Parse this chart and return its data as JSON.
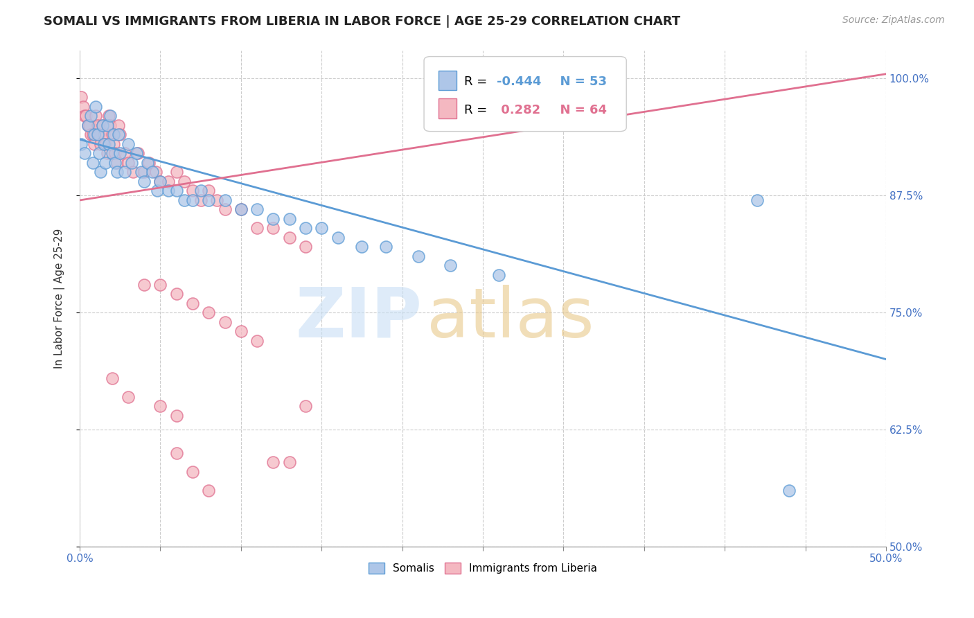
{
  "title": "SOMALI VS IMMIGRANTS FROM LIBERIA IN LABOR FORCE | AGE 25-29 CORRELATION CHART",
  "source": "Source: ZipAtlas.com",
  "ylabel": "In Labor Force | Age 25-29",
  "xlim": [
    0.0,
    0.5
  ],
  "ylim": [
    0.5,
    1.03
  ],
  "xticks": [
    0.0,
    0.05,
    0.1,
    0.15,
    0.2,
    0.25,
    0.3,
    0.35,
    0.4,
    0.45,
    0.5
  ],
  "xticklabels": [
    "0.0%",
    "",
    "",
    "",
    "",
    "",
    "",
    "",
    "",
    "",
    "50.0%"
  ],
  "yticks": [
    0.5,
    0.625,
    0.75,
    0.875,
    1.0
  ],
  "yticklabels": [
    "50.0%",
    "62.5%",
    "75.0%",
    "87.5%",
    "100.0%"
  ],
  "grid_color": "#cccccc",
  "background_color": "#ffffff",
  "somali_color": "#aec6e8",
  "somali_edge_color": "#5b9bd5",
  "liberia_color": "#f4b8c1",
  "liberia_edge_color": "#e07090",
  "somali_R": -0.444,
  "somali_N": 53,
  "liberia_R": 0.282,
  "liberia_N": 64,
  "somali_line_color": "#5b9bd5",
  "liberia_line_color": "#e07090",
  "somali_x": [
    0.001,
    0.003,
    0.005,
    0.007,
    0.008,
    0.009,
    0.01,
    0.011,
    0.012,
    0.013,
    0.014,
    0.015,
    0.016,
    0.017,
    0.018,
    0.019,
    0.02,
    0.021,
    0.022,
    0.023,
    0.024,
    0.025,
    0.028,
    0.03,
    0.032,
    0.035,
    0.038,
    0.04,
    0.042,
    0.045,
    0.048,
    0.05,
    0.055,
    0.06,
    0.065,
    0.07,
    0.075,
    0.08,
    0.09,
    0.1,
    0.11,
    0.12,
    0.13,
    0.14,
    0.15,
    0.16,
    0.175,
    0.19,
    0.21,
    0.23,
    0.26,
    0.42,
    0.44
  ],
  "somali_y": [
    0.93,
    0.92,
    0.95,
    0.96,
    0.91,
    0.94,
    0.97,
    0.94,
    0.92,
    0.9,
    0.95,
    0.93,
    0.91,
    0.95,
    0.93,
    0.96,
    0.92,
    0.94,
    0.91,
    0.9,
    0.94,
    0.92,
    0.9,
    0.93,
    0.91,
    0.92,
    0.9,
    0.89,
    0.91,
    0.9,
    0.88,
    0.89,
    0.88,
    0.88,
    0.87,
    0.87,
    0.88,
    0.87,
    0.87,
    0.86,
    0.86,
    0.85,
    0.85,
    0.84,
    0.84,
    0.83,
    0.82,
    0.82,
    0.81,
    0.8,
    0.79,
    0.87,
    0.56
  ],
  "liberia_x": [
    0.001,
    0.002,
    0.003,
    0.004,
    0.005,
    0.006,
    0.007,
    0.008,
    0.009,
    0.01,
    0.011,
    0.012,
    0.013,
    0.014,
    0.015,
    0.016,
    0.017,
    0.018,
    0.019,
    0.02,
    0.021,
    0.022,
    0.023,
    0.024,
    0.025,
    0.028,
    0.03,
    0.033,
    0.036,
    0.04,
    0.043,
    0.047,
    0.05,
    0.055,
    0.06,
    0.065,
    0.07,
    0.075,
    0.08,
    0.085,
    0.09,
    0.1,
    0.11,
    0.12,
    0.13,
    0.14,
    0.04,
    0.05,
    0.06,
    0.07,
    0.08,
    0.09,
    0.1,
    0.11,
    0.12,
    0.13,
    0.14,
    0.02,
    0.03,
    0.05,
    0.06,
    0.06,
    0.07,
    0.08
  ],
  "liberia_y": [
    0.98,
    0.97,
    0.96,
    0.96,
    0.95,
    0.95,
    0.94,
    0.94,
    0.93,
    0.96,
    0.95,
    0.94,
    0.93,
    0.95,
    0.94,
    0.93,
    0.92,
    0.96,
    0.95,
    0.94,
    0.93,
    0.92,
    0.91,
    0.95,
    0.94,
    0.92,
    0.91,
    0.9,
    0.92,
    0.9,
    0.91,
    0.9,
    0.89,
    0.89,
    0.9,
    0.89,
    0.88,
    0.87,
    0.88,
    0.87,
    0.86,
    0.86,
    0.84,
    0.84,
    0.83,
    0.82,
    0.78,
    0.78,
    0.77,
    0.76,
    0.75,
    0.74,
    0.73,
    0.72,
    0.59,
    0.59,
    0.65,
    0.68,
    0.66,
    0.65,
    0.64,
    0.6,
    0.58,
    0.56
  ],
  "liberia_trend_x0": 0.0,
  "liberia_trend_x1": 0.5,
  "liberia_trend_y0": 0.87,
  "liberia_trend_y1": 1.005,
  "somali_trend_x0": 0.0,
  "somali_trend_x1": 0.5,
  "somali_trend_y0": 0.935,
  "somali_trend_y1": 0.7
}
